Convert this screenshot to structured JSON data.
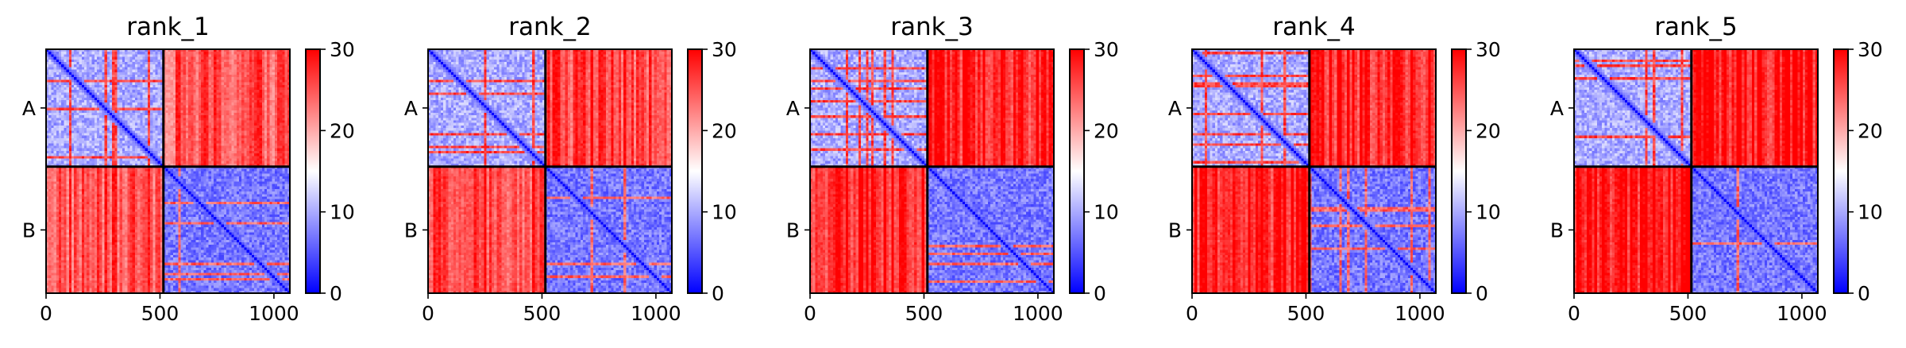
{
  "figure": {
    "description_type": "pae-heatmap-panels",
    "colormap": {
      "low": "#0000ff",
      "mid": "#ffffff",
      "high": "#ff0000"
    }
  },
  "chart_data": [
    {
      "type": "heatmap",
      "title": "rank_1",
      "x_ticks": [
        "0",
        "500",
        "1000"
      ],
      "x_tick_values": [
        0,
        500,
        1000
      ],
      "x_range": [
        0,
        1070
      ],
      "chain_boundary": 515,
      "y_ticks": [
        "A",
        "B"
      ],
      "colorbar": {
        "ticks": [
          "0",
          "10",
          "20",
          "30"
        ],
        "values": [
          0,
          10,
          20,
          30
        ],
        "range": [
          0,
          30
        ]
      },
      "blocks": {
        "A_A": 10,
        "A_B": 25,
        "B_A": 25,
        "B_B": 7
      }
    },
    {
      "type": "heatmap",
      "title": "rank_2",
      "x_ticks": [
        "0",
        "500",
        "1000"
      ],
      "x_tick_values": [
        0,
        500,
        1000
      ],
      "x_range": [
        0,
        1070
      ],
      "chain_boundary": 515,
      "y_ticks": [
        "A",
        "B"
      ],
      "colorbar": {
        "ticks": [
          "0",
          "10",
          "20",
          "30"
        ],
        "values": [
          0,
          10,
          20,
          30
        ],
        "range": [
          0,
          30
        ]
      },
      "blocks": {
        "A_A": 10,
        "A_B": 26,
        "B_A": 26,
        "B_B": 7
      }
    },
    {
      "type": "heatmap",
      "title": "rank_3",
      "x_ticks": [
        "0",
        "500",
        "1000"
      ],
      "x_tick_values": [
        0,
        500,
        1000
      ],
      "x_range": [
        0,
        1070
      ],
      "chain_boundary": 515,
      "y_ticks": [
        "A",
        "B"
      ],
      "colorbar": {
        "ticks": [
          "0",
          "10",
          "20",
          "30"
        ],
        "values": [
          0,
          10,
          20,
          30
        ],
        "range": [
          0,
          30
        ]
      },
      "blocks": {
        "A_A": 10,
        "A_B": 28,
        "B_A": 28,
        "B_B": 7
      }
    },
    {
      "type": "heatmap",
      "title": "rank_4",
      "x_ticks": [
        "0",
        "500",
        "1000"
      ],
      "x_tick_values": [
        0,
        500,
        1000
      ],
      "x_range": [
        0,
        1070
      ],
      "chain_boundary": 515,
      "y_ticks": [
        "A",
        "B"
      ],
      "colorbar": {
        "ticks": [
          "0",
          "10",
          "20",
          "30"
        ],
        "values": [
          0,
          10,
          20,
          30
        ],
        "range": [
          0,
          30
        ]
      },
      "blocks": {
        "A_A": 10,
        "A_B": 28,
        "B_A": 28,
        "B_B": 7
      }
    },
    {
      "type": "heatmap",
      "title": "rank_5",
      "x_ticks": [
        "0",
        "500",
        "1000"
      ],
      "x_tick_values": [
        0,
        500,
        1000
      ],
      "x_range": [
        0,
        1070
      ],
      "chain_boundary": 515,
      "y_ticks": [
        "A",
        "B"
      ],
      "colorbar": {
        "ticks": [
          "0",
          "10",
          "20",
          "30"
        ],
        "values": [
          0,
          10,
          20,
          30
        ],
        "range": [
          0,
          30
        ]
      },
      "blocks": {
        "A_A": 10,
        "A_B": 29,
        "B_A": 29,
        "B_B": 7
      }
    }
  ]
}
